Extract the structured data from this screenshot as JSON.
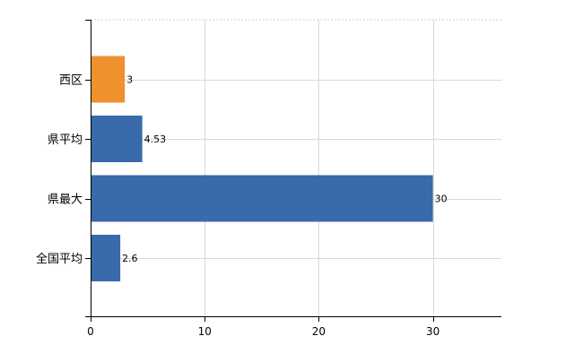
{
  "chart_data": {
    "type": "bar",
    "orientation": "horizontal",
    "title": "",
    "xlabel": "",
    "ylabel": "",
    "categories": [
      "西区",
      "県平均",
      "県最大",
      "全国平均"
    ],
    "values": [
      3,
      4.53,
      30,
      2.6
    ],
    "data_labels": [
      "3",
      "4.53",
      "30",
      "2.6"
    ],
    "bar_colors": [
      "#F0912F",
      "#386AAC",
      "#386AAC",
      "#386AAC"
    ],
    "xlim": [
      0,
      36
    ],
    "xticks": [
      0,
      10,
      20,
      30
    ],
    "xtick_labels": [
      "0",
      "10",
      "20",
      "30"
    ],
    "grid": true,
    "legend": "none"
  }
}
